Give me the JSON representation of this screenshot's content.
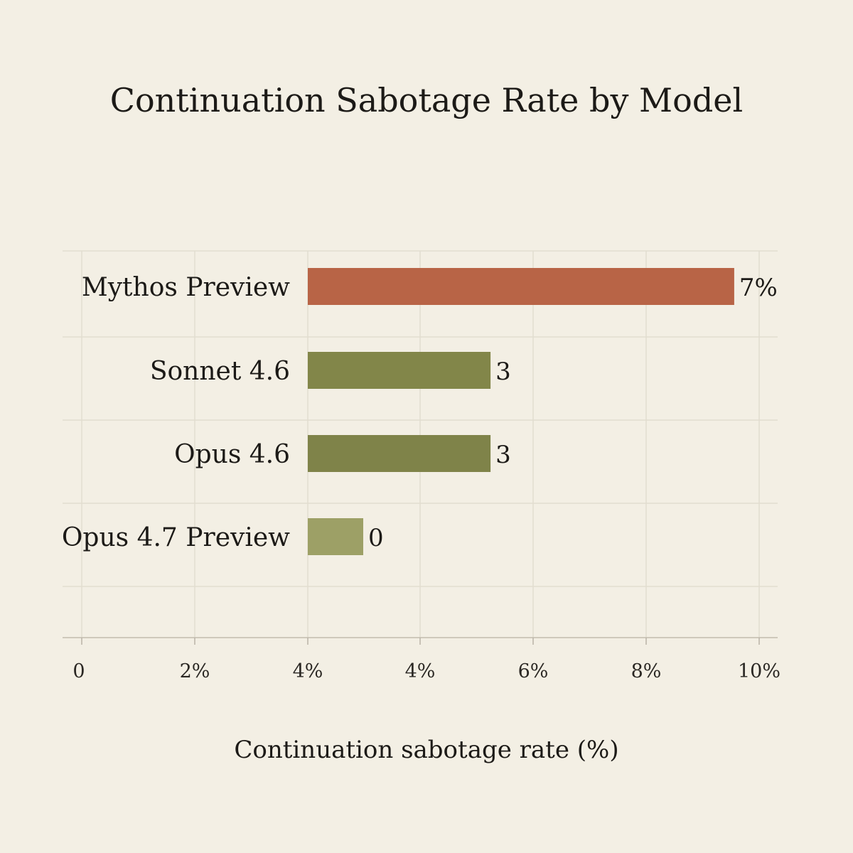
{
  "chart_data": {
    "type": "bar",
    "orientation": "horizontal",
    "title": "Continuation Sabotage Rate by Model",
    "xlabel": "Continuation sabotage rate (%)",
    "ylabel": "",
    "categories": [
      "Mythos Preview",
      "Sonnet 4.6",
      "Opus 4.6",
      "Opus 4.7 Preview"
    ],
    "values": [
      7,
      3,
      3,
      0
    ],
    "value_labels": [
      "7%",
      "3",
      "3",
      "0"
    ],
    "bar_colors": [
      "#b86446",
      "#828649",
      "#7f8349",
      "#9da066"
    ],
    "x_tick_labels": [
      "0",
      "2%",
      "4%",
      "4%",
      "6%",
      "8%",
      "10%"
    ],
    "grid": true,
    "legend": "none"
  }
}
